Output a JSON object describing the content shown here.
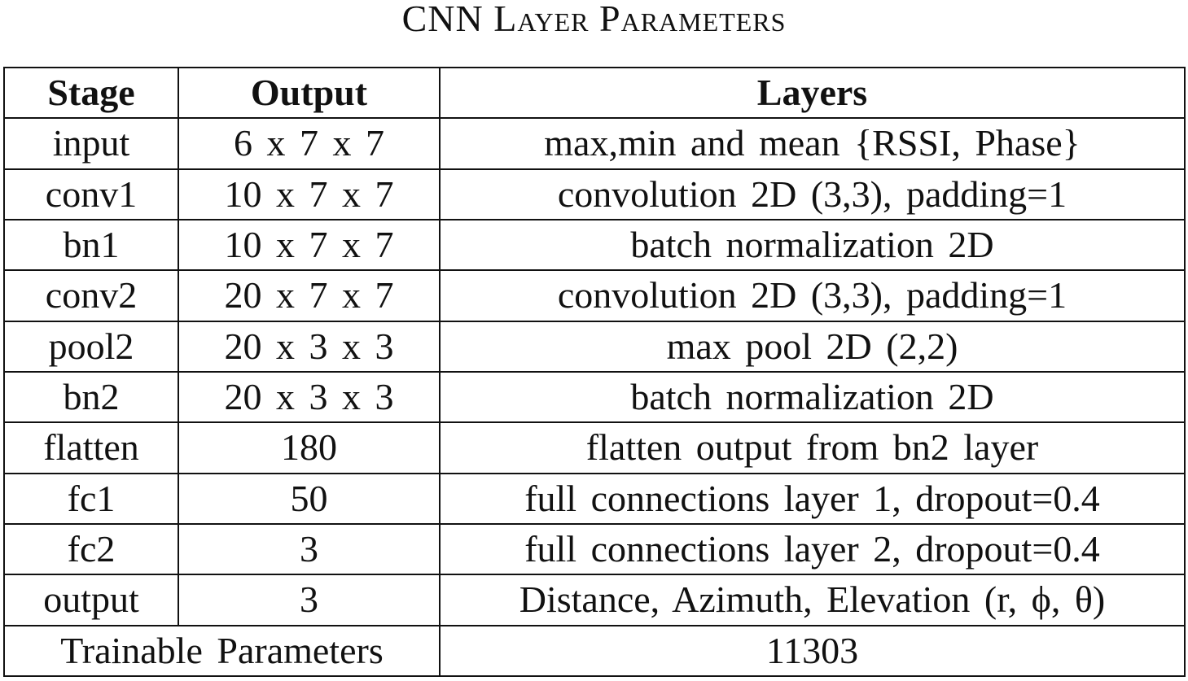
{
  "title": "CNN Layer Parameters",
  "table": {
    "header": [
      "Stage",
      "Output",
      "Layers"
    ],
    "rows": [
      [
        "input",
        "6 x 7 x 7",
        "max,min and mean {RSSI, Phase}"
      ],
      [
        "conv1",
        "10 x 7 x 7",
        "convolution 2D (3,3), padding=1"
      ],
      [
        "bn1",
        "10 x 7 x 7",
        "batch normalization 2D"
      ],
      [
        "conv2",
        "20 x 7 x 7",
        "convolution 2D (3,3), padding=1"
      ],
      [
        "pool2",
        "20 x 3 x 3",
        "max pool 2D (2,2)"
      ],
      [
        "bn2",
        "20 x 3 x 3",
        "batch normalization 2D"
      ],
      [
        "flatten",
        "180",
        "flatten output from bn2 layer"
      ],
      [
        "fc1",
        "50",
        "full connections layer 1, dropout=0.4"
      ],
      [
        "fc2",
        "3",
        "full connections layer 2, dropout=0.4"
      ],
      [
        "output",
        "3",
        "Distance, Azimuth, Elevation (r, ϕ, θ)"
      ]
    ],
    "footer": [
      "Trainable Parameters",
      "11303"
    ]
  }
}
